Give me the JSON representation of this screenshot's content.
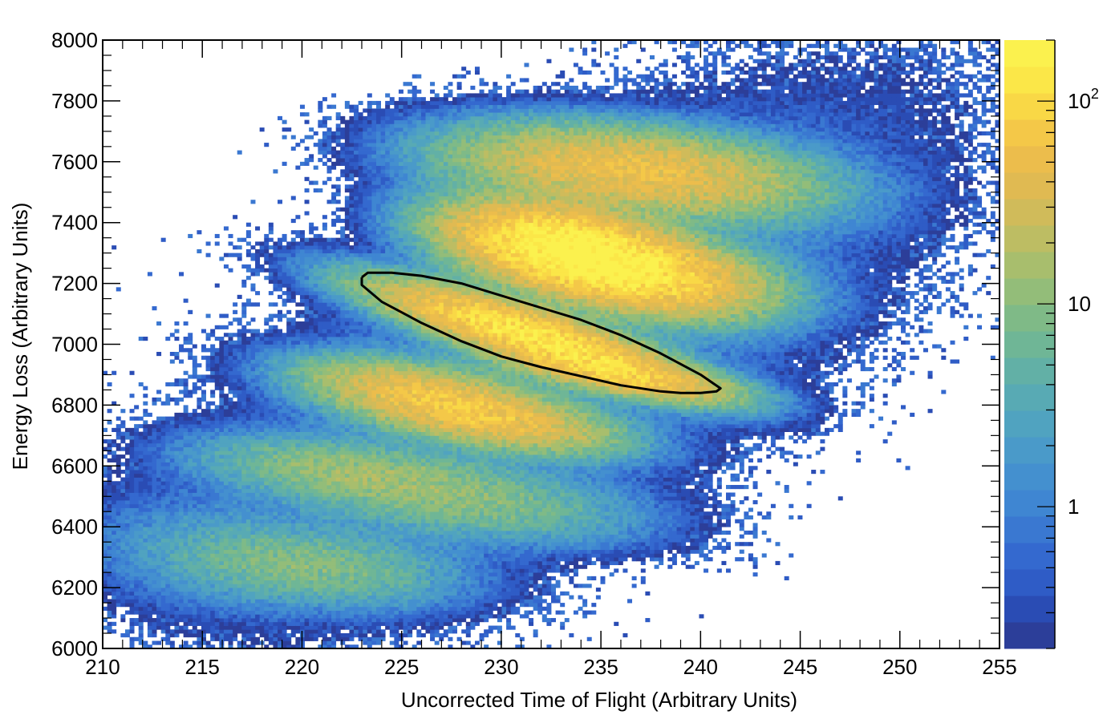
{
  "chart_data": {
    "type": "heatmap",
    "title": "",
    "xlabel": "Uncorrected Time of Flight (Arbitrary Units)",
    "ylabel": "Energy Loss (Arbitrary Units)",
    "xlim": [
      210,
      255
    ],
    "ylim": [
      6000,
      8000
    ],
    "x_ticks": [
      "210",
      "215",
      "220",
      "225",
      "230",
      "235",
      "240",
      "245",
      "250",
      "255"
    ],
    "y_ticks": [
      "6000",
      "6200",
      "6400",
      "6600",
      "6800",
      "7000",
      "7200",
      "7400",
      "7600",
      "7800",
      "8000"
    ],
    "z_scale": "log",
    "z_range": [
      0.2,
      200
    ],
    "colorbar": {
      "labels": [
        {
          "value": 1,
          "text": "1"
        },
        {
          "value": 10,
          "text": "10"
        },
        {
          "value": 100,
          "text": "10",
          "sup": "2"
        }
      ],
      "colors": [
        "#2c3e99",
        "#2a4cb4",
        "#2f5cc6",
        "#3469cf",
        "#3a78d1",
        "#3f86d2",
        "#4490cf",
        "#4a9ac9",
        "#50a3c0",
        "#58aab4",
        "#62b0a6",
        "#6fb696",
        "#7fba87",
        "#93bd79",
        "#a8be6d",
        "#bdbd63",
        "#d0bb5a",
        "#e0ba52",
        "#ecbd4c",
        "#f4c848",
        "#f9d846",
        "#fbe748",
        "#fbf14e"
      ]
    },
    "clusters": [
      {
        "x": 233.5,
        "y": 7310,
        "sx": 3.0,
        "sy": 75,
        "rho": -0.45,
        "peak": 200
      },
      {
        "x": 237.0,
        "y": 7230,
        "sx": 3.2,
        "sy": 70,
        "rho": -0.4,
        "peak": 90
      },
      {
        "x": 236.5,
        "y": 7570,
        "sx": 4.5,
        "sy": 75,
        "rho": -0.35,
        "peak": 55
      },
      {
        "x": 231.5,
        "y": 7030,
        "sx": 3.8,
        "sy": 85,
        "rho": -0.85,
        "peak": 140
      },
      {
        "x": 236.0,
        "y": 6900,
        "sx": 3.0,
        "sy": 45,
        "rho": -0.7,
        "peak": 55
      },
      {
        "x": 226.5,
        "y": 6830,
        "sx": 3.2,
        "sy": 60,
        "rho": -0.55,
        "peak": 50
      },
      {
        "x": 229.5,
        "y": 6750,
        "sx": 3.2,
        "sy": 55,
        "rho": -0.55,
        "peak": 45
      },
      {
        "x": 222.5,
        "y": 6580,
        "sx": 4.0,
        "sy": 60,
        "rho": -0.45,
        "peak": 12
      },
      {
        "x": 228.5,
        "y": 6480,
        "sx": 4.5,
        "sy": 70,
        "rho": -0.4,
        "peak": 8
      },
      {
        "x": 220.5,
        "y": 6270,
        "sx": 3.8,
        "sy": 70,
        "rho": -0.3,
        "peak": 9
      },
      {
        "x": 215.0,
        "y": 6320,
        "sx": 3.5,
        "sy": 110,
        "rho": -0.2,
        "peak": 1.6
      },
      {
        "x": 233.0,
        "y": 7000,
        "sx": 9.0,
        "sy": 420,
        "rho": 0.7,
        "peak": 2.2
      }
    ],
    "cut_polygon": [
      [
        223.0,
        7220
      ],
      [
        223.3,
        7235
      ],
      [
        224.5,
        7235
      ],
      [
        226.0,
        7225
      ],
      [
        228.0,
        7200
      ],
      [
        230.0,
        7160
      ],
      [
        232.0,
        7120
      ],
      [
        234.0,
        7080
      ],
      [
        236.0,
        7030
      ],
      [
        238.0,
        6970
      ],
      [
        240.0,
        6900
      ],
      [
        241.0,
        6855
      ],
      [
        240.8,
        6845
      ],
      [
        240.0,
        6840
      ],
      [
        239.0,
        6840
      ],
      [
        238.0,
        6845
      ],
      [
        236.0,
        6865
      ],
      [
        234.0,
        6895
      ],
      [
        232.0,
        6925
      ],
      [
        230.0,
        6960
      ],
      [
        228.0,
        7010
      ],
      [
        226.0,
        7070
      ],
      [
        224.0,
        7140
      ],
      [
        223.0,
        7195
      ],
      [
        223.0,
        7220
      ]
    ]
  }
}
